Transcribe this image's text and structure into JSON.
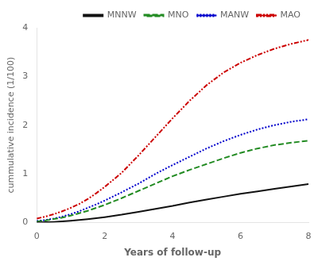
{
  "chart_data": {
    "type": "line",
    "xlabel": "Years of follow-up",
    "ylabel": "cummulative incidence (1/100)",
    "x": [
      0,
      0.25,
      0.5,
      0.75,
      1.0,
      1.25,
      1.5,
      1.75,
      2.0,
      2.5,
      3.0,
      3.5,
      4.0,
      4.5,
      5.0,
      5.5,
      6.0,
      6.5,
      7.0,
      7.5,
      8.0
    ],
    "series": [
      {
        "name": "MNNW",
        "color": "#111111",
        "line_style": "solid",
        "values": [
          0.0,
          0.005,
          0.012,
          0.022,
          0.035,
          0.05,
          0.068,
          0.088,
          0.11,
          0.16,
          0.22,
          0.28,
          0.34,
          0.41,
          0.47,
          0.53,
          0.59,
          0.64,
          0.69,
          0.74,
          0.79
        ]
      },
      {
        "name": "MNO",
        "color": "#228B22",
        "line_style": "dashed",
        "values": [
          0.02,
          0.04,
          0.07,
          0.1,
          0.14,
          0.19,
          0.24,
          0.3,
          0.36,
          0.5,
          0.65,
          0.8,
          0.95,
          1.08,
          1.2,
          1.32,
          1.43,
          1.52,
          1.59,
          1.64,
          1.68
        ]
      },
      {
        "name": "MANW",
        "color": "#0000CC",
        "line_style": "dotted",
        "values": [
          0.03,
          0.05,
          0.08,
          0.12,
          0.17,
          0.23,
          0.3,
          0.37,
          0.45,
          0.62,
          0.8,
          1.0,
          1.18,
          1.35,
          1.52,
          1.67,
          1.8,
          1.91,
          2.0,
          2.07,
          2.12
        ]
      },
      {
        "name": "MAO",
        "color": "#CC0000",
        "line_style": "dash_dot_dot",
        "values": [
          0.08,
          0.12,
          0.17,
          0.23,
          0.3,
          0.38,
          0.48,
          0.6,
          0.73,
          1.02,
          1.38,
          1.76,
          2.14,
          2.5,
          2.82,
          3.08,
          3.28,
          3.44,
          3.57,
          3.67,
          3.75
        ]
      }
    ],
    "xlim": [
      0,
      8
    ],
    "xticks": [
      0,
      2,
      4,
      6,
      8
    ],
    "ylim": [
      0,
      4
    ],
    "yticks": [
      0,
      1,
      2,
      3,
      4
    ],
    "grid": false,
    "legend": "upper right"
  }
}
